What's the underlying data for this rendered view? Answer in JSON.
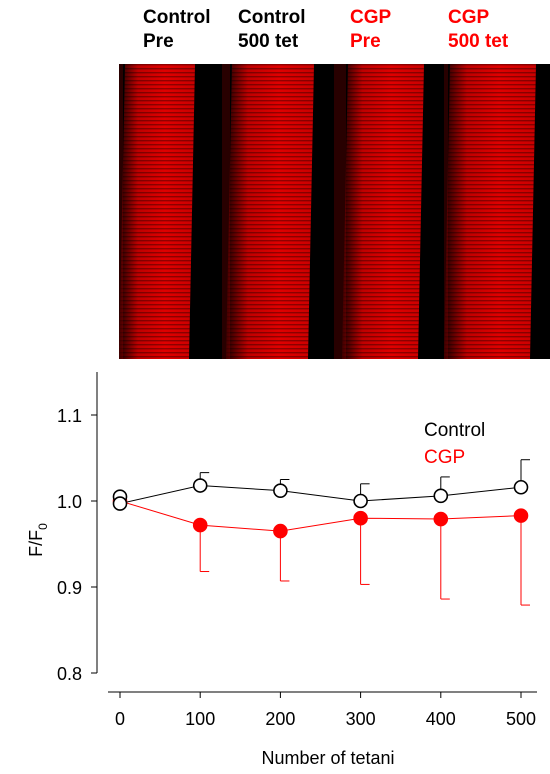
{
  "panels": [
    {
      "line1": "Control",
      "line2": "Pre",
      "color": "#000000"
    },
    {
      "line1": "Control",
      "line2": "500 tet",
      "color": "#000000"
    },
    {
      "line1": "CGP",
      "line2": "Pre",
      "color": "#ff0000"
    },
    {
      "line1": "CGP",
      "line2": "500 tet",
      "color": "#ff0000"
    }
  ],
  "colors": {
    "fluorescence": "#e00000",
    "background": "#000000",
    "control": "#000000",
    "cgp": "#ff0000"
  },
  "chart_data": {
    "type": "line",
    "xlabel": "Number of tetani",
    "ylabel": "F/F",
    "ylabel_subscript": "0",
    "xlim": [
      0,
      500
    ],
    "ylim": [
      0.8,
      1.15
    ],
    "xticks": [
      "0",
      "100",
      "200",
      "300",
      "400",
      "500"
    ],
    "yticks": [
      "0.8",
      "0.9",
      "1.0",
      "1.1"
    ],
    "legend_position": "top-right",
    "series": [
      {
        "name": "Control",
        "color": "#000000",
        "marker": "open-circle",
        "points": [
          [
            0,
            1.005
          ],
          [
            0,
            0.997
          ],
          [
            100,
            1.018
          ],
          [
            200,
            1.012
          ],
          [
            300,
            1.0
          ],
          [
            400,
            1.006
          ],
          [
            500,
            1.016
          ]
        ],
        "line_x": [
          0,
          100,
          200,
          300,
          400,
          500
        ],
        "line_y": [
          0.997,
          1.018,
          1.012,
          1.0,
          1.006,
          1.016
        ],
        "error_x": [
          100,
          200,
          300,
          400,
          500
        ],
        "error_upper": [
          1.033,
          1.025,
          1.02,
          1.028,
          1.048
        ],
        "error_lower": [
          1.018,
          1.012,
          1.0,
          1.006,
          1.016
        ]
      },
      {
        "name": "CGP",
        "color": "#ff0000",
        "marker": "filled-circle",
        "points": [
          [
            0,
            1.0
          ],
          [
            100,
            0.972
          ],
          [
            200,
            0.965
          ],
          [
            300,
            0.98
          ],
          [
            400,
            0.979
          ],
          [
            500,
            0.983
          ]
        ],
        "line_x": [
          0,
          100,
          200,
          300,
          400,
          500
        ],
        "line_y": [
          1.0,
          0.972,
          0.965,
          0.98,
          0.979,
          0.983
        ],
        "error_x": [
          100,
          200,
          300,
          400,
          500
        ],
        "error_upper": [
          0.972,
          0.965,
          0.98,
          0.979,
          0.983
        ],
        "error_lower": [
          0.918,
          0.907,
          0.903,
          0.886,
          0.879
        ]
      }
    ]
  }
}
